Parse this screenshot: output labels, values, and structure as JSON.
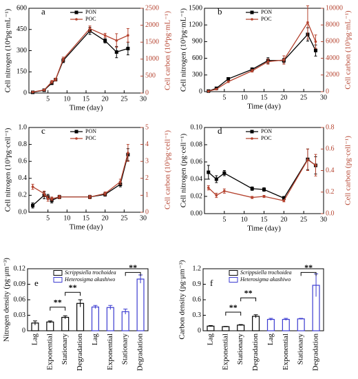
{
  "chart_data": [
    {
      "type": "line",
      "label": "a",
      "xlabel": "Time (day)",
      "ylabel": "Cell nitrogen (10⁴pg·mL⁻¹)",
      "y2label": "Cell carbon (10⁴pg·mL⁻¹)",
      "x": [
        1,
        4,
        6,
        7,
        9,
        16,
        20,
        23,
        26
      ],
      "xlim": [
        0,
        30
      ],
      "xticks": [
        5,
        10,
        15,
        20,
        25,
        30
      ],
      "ylim": [
        0,
        600
      ],
      "yticks": [
        0,
        150,
        300,
        450,
        600
      ],
      "y2lim": [
        0,
        2500
      ],
      "y2ticks": [
        0,
        500,
        1000,
        1500,
        2000,
        2500
      ],
      "series": [
        {
          "name": "PON",
          "color": "#000000",
          "values": [
            5,
            20,
            70,
            95,
            230,
            440,
            370,
            290,
            315
          ],
          "errors": [
            3,
            5,
            10,
            10,
            15,
            25,
            15,
            40,
            45
          ]
        },
        {
          "name": "POC",
          "color": "#b5432f",
          "axis": "y2",
          "values": [
            30,
            90,
            330,
            400,
            1000,
            1900,
            1700,
            1550,
            1700
          ],
          "errors": [
            10,
            20,
            40,
            40,
            60,
            80,
            60,
            200,
            200
          ]
        }
      ]
    },
    {
      "type": "line",
      "label": "b",
      "xlabel": "Time (day)",
      "ylabel": "Cell nitrogen (10³pg·mL⁻¹)",
      "y2label": "Cell carbon (10³pg·mL⁻¹)",
      "x": [
        1,
        3,
        6,
        12,
        16,
        20,
        26,
        28
      ],
      "xlim": [
        0,
        30
      ],
      "xticks": [
        5,
        10,
        15,
        20,
        25,
        30
      ],
      "ylim": [
        0,
        1500
      ],
      "yticks": [
        0,
        300,
        600,
        900,
        1200,
        1500
      ],
      "y2lim": [
        0,
        10000
      ],
      "y2ticks": [
        0,
        2000,
        4000,
        6000,
        8000,
        10000
      ],
      "series": [
        {
          "name": "PON",
          "color": "#000000",
          "values": [
            10,
            60,
            230,
            400,
            560,
            560,
            1030,
            740
          ],
          "errors": [
            5,
            10,
            20,
            30,
            50,
            40,
            120,
            100
          ]
        },
        {
          "name": "POC",
          "color": "#b5432f",
          "axis": "y2",
          "values": [
            50,
            300,
            1200,
            2500,
            3600,
            3800,
            8300,
            6000
          ],
          "errors": [
            20,
            60,
            100,
            150,
            300,
            500,
            2000,
            800
          ]
        }
      ]
    },
    {
      "type": "line",
      "label": "c",
      "xlabel": "Time (day)",
      "ylabel": "Cell nitrogen (10³pg·cell⁻¹)",
      "y2label": "Cell carbon (10³pg·cell⁻¹)",
      "x": [
        1,
        4,
        5,
        6,
        8,
        16,
        20,
        24,
        26
      ],
      "xlim": [
        0,
        30
      ],
      "xticks": [
        5,
        10,
        15,
        20,
        25,
        30
      ],
      "ylim": [
        0,
        1.0
      ],
      "yticks": [
        {
          "value": 0,
          "label": "0.0"
        },
        0.2,
        0.4,
        0.6,
        0.8,
        {
          "value": 1,
          "label": "1.0"
        }
      ],
      "y2lim": [
        0,
        5
      ],
      "y2ticks": [
        0,
        1,
        2,
        3,
        4,
        5
      ],
      "series": [
        {
          "name": "PON",
          "color": "#000000",
          "values": [
            0.08,
            0.2,
            0.18,
            0.14,
            0.18,
            0.18,
            0.21,
            0.33,
            0.68
          ],
          "errors": [
            0.03,
            0.04,
            0.03,
            0.03,
            0.02,
            0.02,
            0.02,
            0.03,
            0.07
          ]
        },
        {
          "name": "POC",
          "color": "#b5432f",
          "axis": "y2",
          "values": [
            1.5,
            1.1,
            0.8,
            0.8,
            0.9,
            0.9,
            1.1,
            1.8,
            3.5
          ],
          "errors": [
            0.15,
            0.15,
            0.15,
            0.1,
            0.1,
            0.1,
            0.1,
            0.15,
            0.5
          ]
        }
      ]
    },
    {
      "type": "line",
      "label": "d",
      "xlabel": "Time (day)",
      "ylabel": "Cell nitrogen (pg·cell⁻¹)",
      "y2label": "Cell carbon (pg·cell⁻¹)",
      "x": [
        1,
        3,
        5,
        12,
        15,
        20,
        26,
        28
      ],
      "xlim": [
        0,
        30
      ],
      "xticks": [
        5,
        10,
        15,
        20,
        25,
        30
      ],
      "ylim": [
        0,
        0.1
      ],
      "yticks": [
        {
          "value": 0,
          "label": "0.00"
        },
        0.02,
        0.04,
        0.06,
        0.08,
        {
          "value": 0.1,
          "label": "0.10"
        }
      ],
      "y2lim": [
        0,
        0.8
      ],
      "y2ticks": [
        {
          "value": 0,
          "label": "0.0"
        },
        0.2,
        0.4,
        0.6,
        0.8
      ],
      "series": [
        {
          "name": "PON",
          "color": "#000000",
          "values": [
            0.048,
            0.04,
            0.047,
            0.029,
            0.028,
            0.018,
            0.063,
            0.056
          ],
          "errors": [
            0.008,
            0.004,
            0.003,
            0.002,
            0.002,
            0.002,
            0.012,
            0.01
          ]
        },
        {
          "name": "POC",
          "color": "#b5432f",
          "axis": "y2",
          "values": [
            0.24,
            0.17,
            0.21,
            0.15,
            0.16,
            0.12,
            0.5,
            0.45
          ],
          "errors": [
            0.02,
            0.02,
            0.02,
            0.01,
            0.01,
            0.01,
            0.1,
            0.1
          ]
        }
      ]
    },
    {
      "type": "bar",
      "label": "e",
      "ylabel": "Nitrogen density (pg·μm⁻³)",
      "categories": [
        "Lag",
        "Exponential",
        "Stationary",
        "Degradation",
        "Lag",
        "Exponential",
        "Stationary",
        "Degradation"
      ],
      "ylim": [
        0,
        0.12
      ],
      "yticks": [
        0,
        0.03,
        0.06,
        0.09,
        0.12
      ],
      "annotations": [
        "**",
        "**",
        "**"
      ],
      "series": [
        {
          "name": "Scrippsiella trochoidea",
          "color": "#000000",
          "values": [
            0.015,
            0.017,
            0.026,
            0.053,
            null,
            null,
            null,
            null
          ],
          "errors": [
            0.004,
            0.002,
            0.003,
            0.007,
            null,
            null,
            null,
            null
          ]
        },
        {
          "name": "Heterosigma akashiwo",
          "color": "#3a3ad0",
          "values": [
            null,
            null,
            null,
            null,
            0.046,
            0.045,
            0.037,
            0.1
          ],
          "errors": [
            null,
            null,
            null,
            null,
            0.003,
            0.004,
            0.005,
            0.008
          ]
        }
      ]
    },
    {
      "type": "bar",
      "label": "f",
      "ylabel": "Carbon density (pg·μm⁻³)",
      "categories": [
        "Lag",
        "Exponential",
        "Stationary",
        "Degradation",
        "Lag",
        "Exponential",
        "Stationary",
        "Degradation"
      ],
      "ylim": [
        0,
        1.2
      ],
      "yticks": [
        0,
        0.3,
        0.6,
        0.9,
        1.2
      ],
      "annotations": [
        "**",
        "**",
        "**"
      ],
      "series": [
        {
          "name": "Scrippsiella trochoidea",
          "color": "#000000",
          "values": [
            0.09,
            0.08,
            0.11,
            0.28,
            null,
            null,
            null,
            null
          ],
          "errors": [
            0.01,
            0.005,
            0.01,
            0.03,
            null,
            null,
            null,
            null
          ]
        },
        {
          "name": "Heterosigma akashiwo",
          "color": "#3a3ad0",
          "values": [
            null,
            null,
            null,
            null,
            0.22,
            0.22,
            0.23,
            0.88
          ],
          "errors": [
            null,
            null,
            null,
            null,
            0.02,
            0.02,
            0.01,
            0.22
          ]
        }
      ]
    }
  ]
}
